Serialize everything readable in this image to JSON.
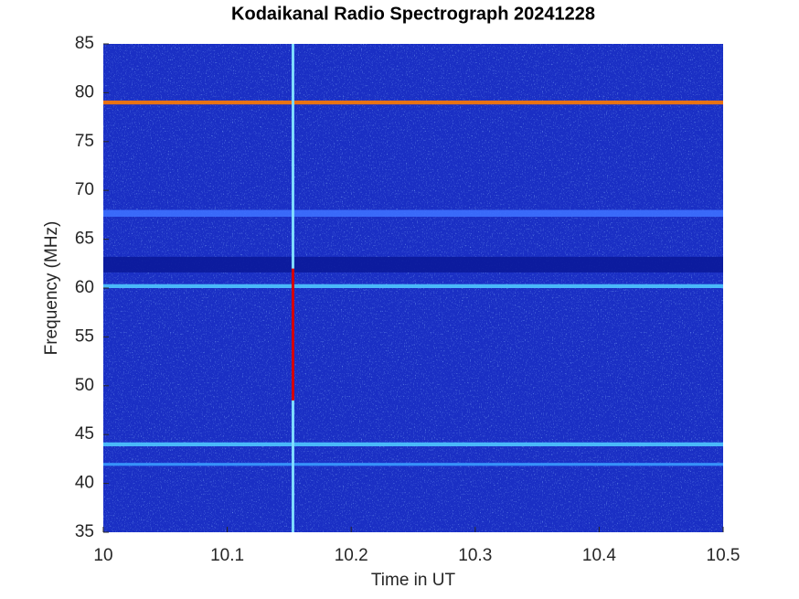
{
  "chart_data": {
    "type": "spectrogram",
    "title": "Kodaikanal Radio Spectrograph  20241228",
    "x_label": "Time in UT",
    "y_label": "Frequency (MHz)",
    "xlim": [
      10,
      10.5
    ],
    "xticks": [
      10,
      10.1,
      10.2,
      10.3,
      10.4,
      10.5
    ],
    "ylim": [
      35,
      85
    ],
    "yticks": [
      35,
      40,
      45,
      50,
      55,
      60,
      65,
      70,
      75,
      80,
      85
    ],
    "background_color": "#1a2fc4",
    "bands": [
      {
        "y": [
          61.6,
          63.2
        ],
        "color": "#0b1a9a"
      },
      {
        "y": [
          67.3,
          68.0
        ],
        "color": "#3d70ff"
      },
      {
        "y": [
          78.8,
          79.2
        ],
        "color": "#ff7a00"
      },
      {
        "y": [
          60.0,
          60.4
        ],
        "color": "#4fc8ff"
      },
      {
        "y": [
          43.8,
          44.2
        ],
        "color": "#4fc8ff"
      },
      {
        "y": [
          41.8,
          42.1
        ],
        "color": "#3a9cff"
      }
    ],
    "vlines": [
      {
        "x": 10.153,
        "y": [
          35,
          85
        ],
        "color": "#7fdcff"
      },
      {
        "x": 10.153,
        "y": [
          48.5,
          62
        ],
        "color": "#d40000"
      }
    ]
  }
}
